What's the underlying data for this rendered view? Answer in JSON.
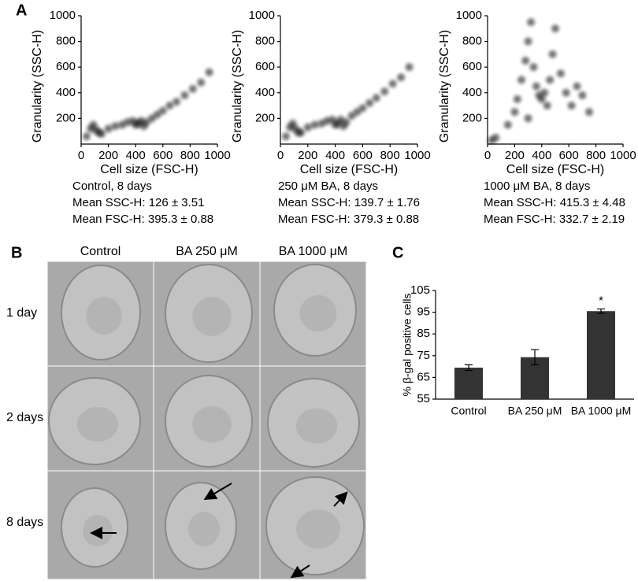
{
  "figure": {
    "panel_labels": [
      "A",
      "B",
      "C"
    ]
  },
  "chart_data": [
    {
      "type": "scatter",
      "x_label": "Cell size (FSC-H)",
      "y_label": "Granularity (SSC-H)",
      "xlim": [
        0,
        1000
      ],
      "ylim": [
        0,
        1000
      ],
      "xticks": [
        0,
        200,
        400,
        600,
        800,
        1000
      ],
      "yticks": [
        200,
        400,
        600,
        800,
        1000
      ],
      "color": "#000000",
      "x": [
        40,
        70,
        90,
        110,
        130,
        200,
        250,
        300,
        340,
        380,
        400,
        420,
        440,
        460,
        480,
        520,
        560,
        600,
        650,
        700,
        760,
        820,
        880,
        940,
        150
      ],
      "y": [
        60,
        120,
        150,
        110,
        90,
        120,
        140,
        150,
        170,
        180,
        150,
        160,
        180,
        140,
        170,
        200,
        230,
        260,
        300,
        330,
        380,
        430,
        480,
        560,
        80
      ],
      "caption": [
        "Control, 8 days",
        "Mean SSC-H: 126 ± 3.51",
        "Mean FSC-H: 395.3 ± 0.88"
      ]
    },
    {
      "type": "scatter",
      "x_label": "Cell size (FSC-H)",
      "y_label": "Granularity (SSC-H)",
      "xlim": [
        0,
        1000
      ],
      "ylim": [
        0,
        1000
      ],
      "xticks": [
        0,
        200,
        400,
        600,
        800,
        1000
      ],
      "yticks": [
        200,
        400,
        600,
        800,
        1000
      ],
      "color": "#000000",
      "x": [
        40,
        70,
        90,
        110,
        130,
        200,
        250,
        300,
        340,
        380,
        400,
        420,
        440,
        460,
        480,
        520,
        560,
        600,
        650,
        700,
        760,
        820,
        880,
        940,
        150
      ],
      "y": [
        60,
        130,
        160,
        120,
        90,
        130,
        150,
        160,
        180,
        190,
        150,
        160,
        190,
        140,
        170,
        220,
        250,
        280,
        320,
        360,
        410,
        470,
        520,
        600,
        90
      ],
      "caption": [
        "250 μM BA, 8 days",
        "Mean SSC-H: 139.7 ± 1.76",
        "Mean FSC-H: 379.3 ± 0.88"
      ]
    },
    {
      "type": "scatter",
      "x_label": "Cell size (FSC-H)",
      "y_label": "Granularity (SSC-H)",
      "xlim": [
        0,
        1000
      ],
      "ylim": [
        0,
        1000
      ],
      "xticks": [
        0,
        200,
        400,
        600,
        800,
        1000
      ],
      "yticks": [
        200,
        400,
        600,
        800,
        1000
      ],
      "color": "#000000",
      "x": [
        30,
        60,
        150,
        200,
        220,
        250,
        280,
        300,
        320,
        340,
        360,
        380,
        400,
        420,
        440,
        460,
        480,
        500,
        540,
        580,
        620,
        660,
        700,
        750,
        300
      ],
      "y": [
        30,
        50,
        150,
        250,
        350,
        500,
        650,
        800,
        950,
        600,
        450,
        380,
        350,
        400,
        300,
        500,
        700,
        900,
        550,
        400,
        300,
        450,
        380,
        250,
        200
      ],
      "caption": [
        "1000 μM BA, 8 days",
        "Mean SSC-H: 415.3 ± 4.48",
        "Mean FSC-H: 332.7 ± 2.19"
      ]
    },
    {
      "type": "bar",
      "y_label": "% β-gal positive cells",
      "categories": [
        "Control",
        "BA 250 μM",
        "BA 1000 μM"
      ],
      "values": [
        69.5,
        74.3,
        95.5
      ],
      "errors": [
        1.3,
        3.5,
        1.0
      ],
      "significance": [
        null,
        null,
        "*"
      ],
      "color": "#333333",
      "ylim": [
        55,
        105
      ],
      "yticks": [
        55,
        65,
        75,
        85,
        95,
        105
      ]
    }
  ],
  "panel_b": {
    "columns": [
      "Control",
      "BA 250 μM",
      "BA 1000 μM"
    ],
    "rows": [
      "1 day",
      "2 days",
      "8 days"
    ]
  }
}
